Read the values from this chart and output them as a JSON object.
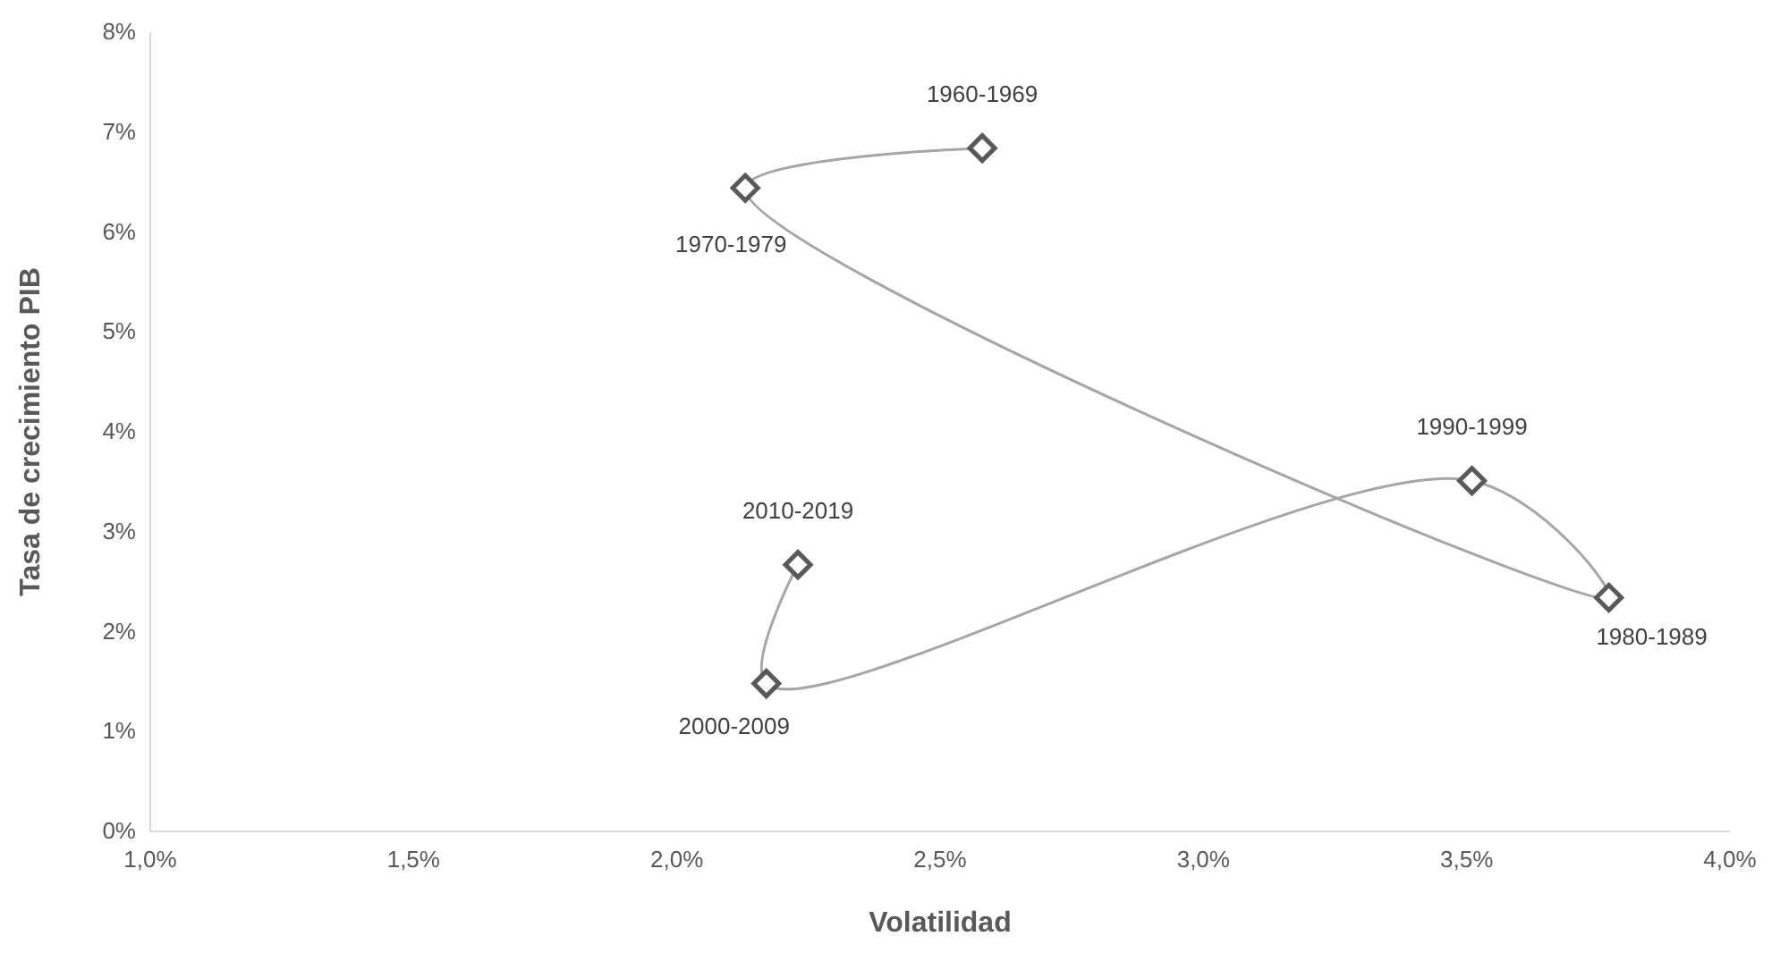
{
  "chart_data": {
    "type": "line",
    "xlabel": "Volatilidad",
    "ylabel": "Tasa de crecimiento PIB",
    "x": [
      2.58,
      2.13,
      3.77,
      3.51,
      2.17,
      2.23
    ],
    "series": [
      {
        "color": "#a6a6a6",
        "values": [
          6.84,
          6.44,
          2.34,
          3.51,
          1.48,
          2.67
        ]
      }
    ],
    "marker": "diamond",
    "line_style": "solid",
    "grid": false,
    "xlim": [
      1,
      4
    ],
    "xticks": [
      {
        "value": 1,
        "label": "1,0%"
      },
      {
        "value": 1.5,
        "label": "1,5%"
      },
      {
        "value": 2,
        "label": "2,0%"
      },
      {
        "value": 2.5,
        "label": "2,5%"
      },
      {
        "value": 3,
        "label": "3,0%"
      },
      {
        "value": 3.5,
        "label": "3,5%"
      },
      {
        "value": 4,
        "label": "4,0%"
      }
    ],
    "ylim": [
      0,
      8
    ],
    "yticks": [
      {
        "value": 0,
        "label": "0%"
      },
      {
        "value": 1,
        "label": "1%"
      },
      {
        "value": 2,
        "label": "2%"
      },
      {
        "value": 3,
        "label": "3%"
      },
      {
        "value": 4,
        "label": "4%"
      },
      {
        "value": 5,
        "label": "5%"
      },
      {
        "value": 6,
        "label": "6%"
      },
      {
        "value": 7,
        "label": "7%"
      },
      {
        "value": 8,
        "label": "8%"
      }
    ],
    "annotations": [
      {
        "text": "1960-1969",
        "x": 2.58,
        "y": 6.84
      },
      {
        "text": "1970-1979",
        "x": 2.13,
        "y": 6.44
      },
      {
        "text": "1980-1989",
        "x": 3.77,
        "y": 2.34
      },
      {
        "text": "1990-1999",
        "x": 3.51,
        "y": 3.51
      },
      {
        "text": "2000-2009",
        "x": 2.17,
        "y": 1.48
      },
      {
        "text": "2010-2019",
        "x": 2.23,
        "y": 2.67
      }
    ]
  }
}
